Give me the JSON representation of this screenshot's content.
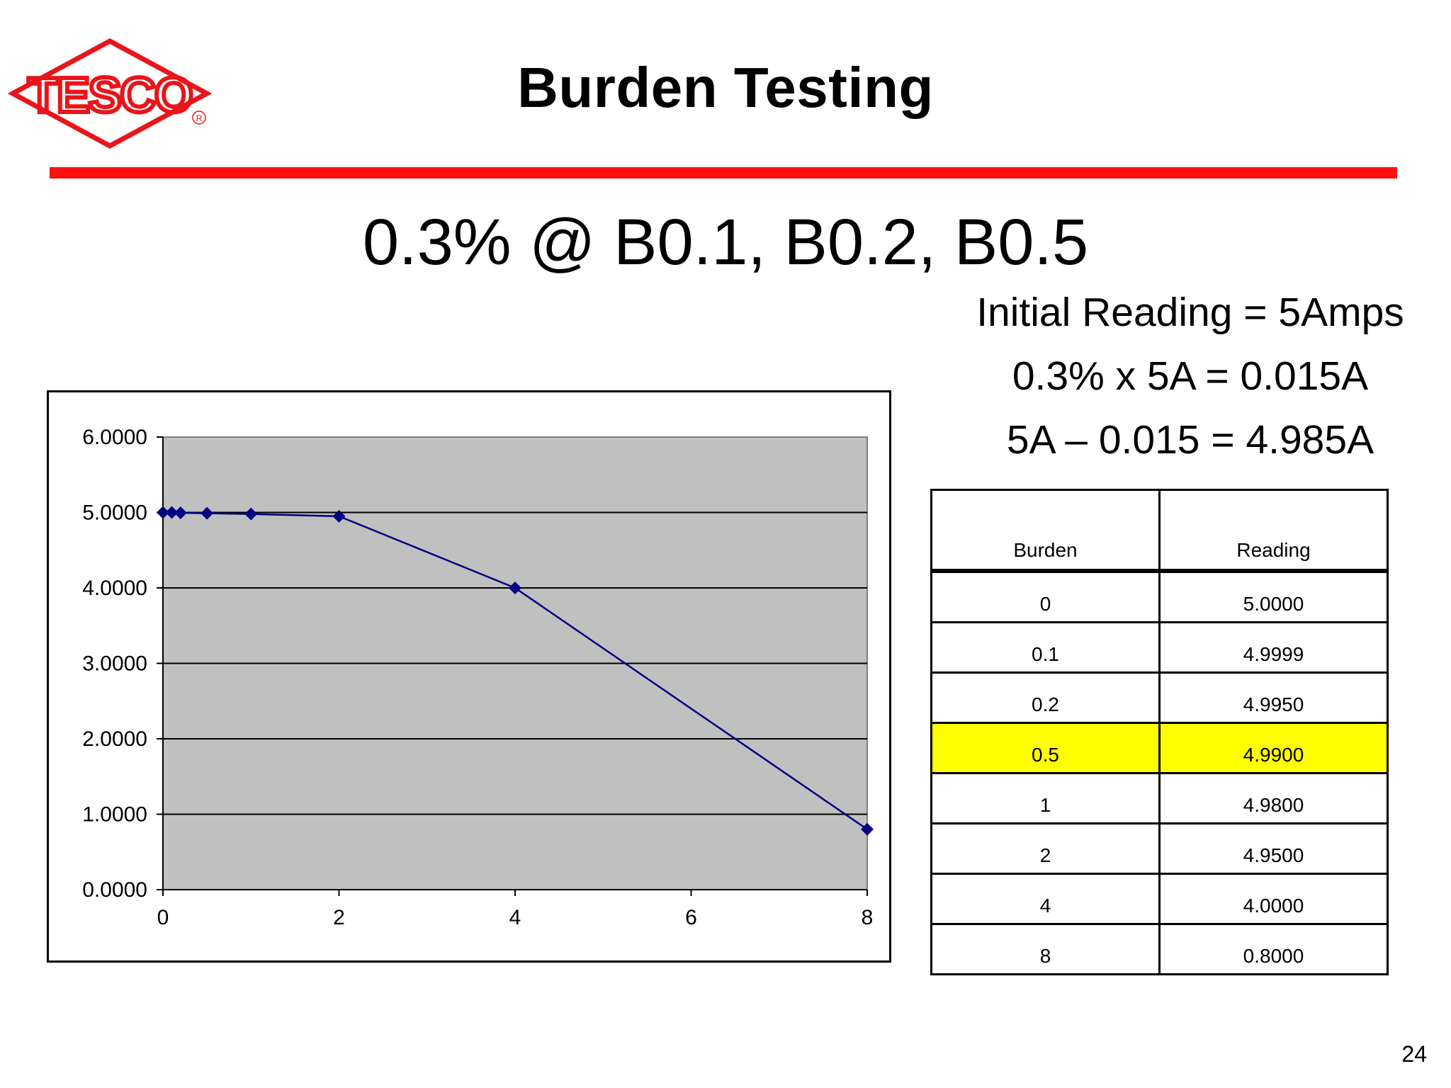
{
  "logo": {
    "text": "TESCO",
    "registered": "R",
    "color": "#e8151b"
  },
  "title": "Burden Testing",
  "subtitle": "0.3% @ B0.1, B0.2, B0.5",
  "calculations": [
    "Initial Reading = 5Amps",
    "0.3% x 5A = 0.015A",
    "5A – 0.015 = 4.985A"
  ],
  "table": {
    "headers": [
      "Burden",
      "Reading"
    ],
    "rows": [
      [
        "0",
        "5.0000"
      ],
      [
        "0.1",
        "4.9999"
      ],
      [
        "0.2",
        "4.9950"
      ],
      [
        "0.5",
        "4.9900"
      ],
      [
        "1",
        "4.9800"
      ],
      [
        "2",
        "4.9500"
      ],
      [
        "4",
        "4.0000"
      ],
      [
        "8",
        "0.8000"
      ]
    ],
    "highlight_row": 3,
    "highlight_color": "#ffff00"
  },
  "chart_data": {
    "type": "line",
    "title": "",
    "xlabel": "",
    "ylabel": "",
    "x": [
      0,
      0.1,
      0.2,
      0.5,
      1,
      2,
      4,
      8
    ],
    "series": [
      {
        "values": [
          5.0,
          4.9999,
          4.995,
          4.99,
          4.98,
          4.95,
          4.0,
          0.8
        ],
        "color": "#000080",
        "marker": "diamond"
      }
    ],
    "xlim": [
      0,
      8
    ],
    "ylim": [
      0,
      6
    ],
    "x_ticks": [
      "0",
      "2",
      "4",
      "6",
      "8"
    ],
    "y_ticks": [
      "0.0000",
      "1.0000",
      "2.0000",
      "3.0000",
      "4.0000",
      "5.0000",
      "6.0000"
    ],
    "grid": "horizontal",
    "plot_background": "#c0c0c0",
    "legend": "none"
  },
  "page_number": "24"
}
